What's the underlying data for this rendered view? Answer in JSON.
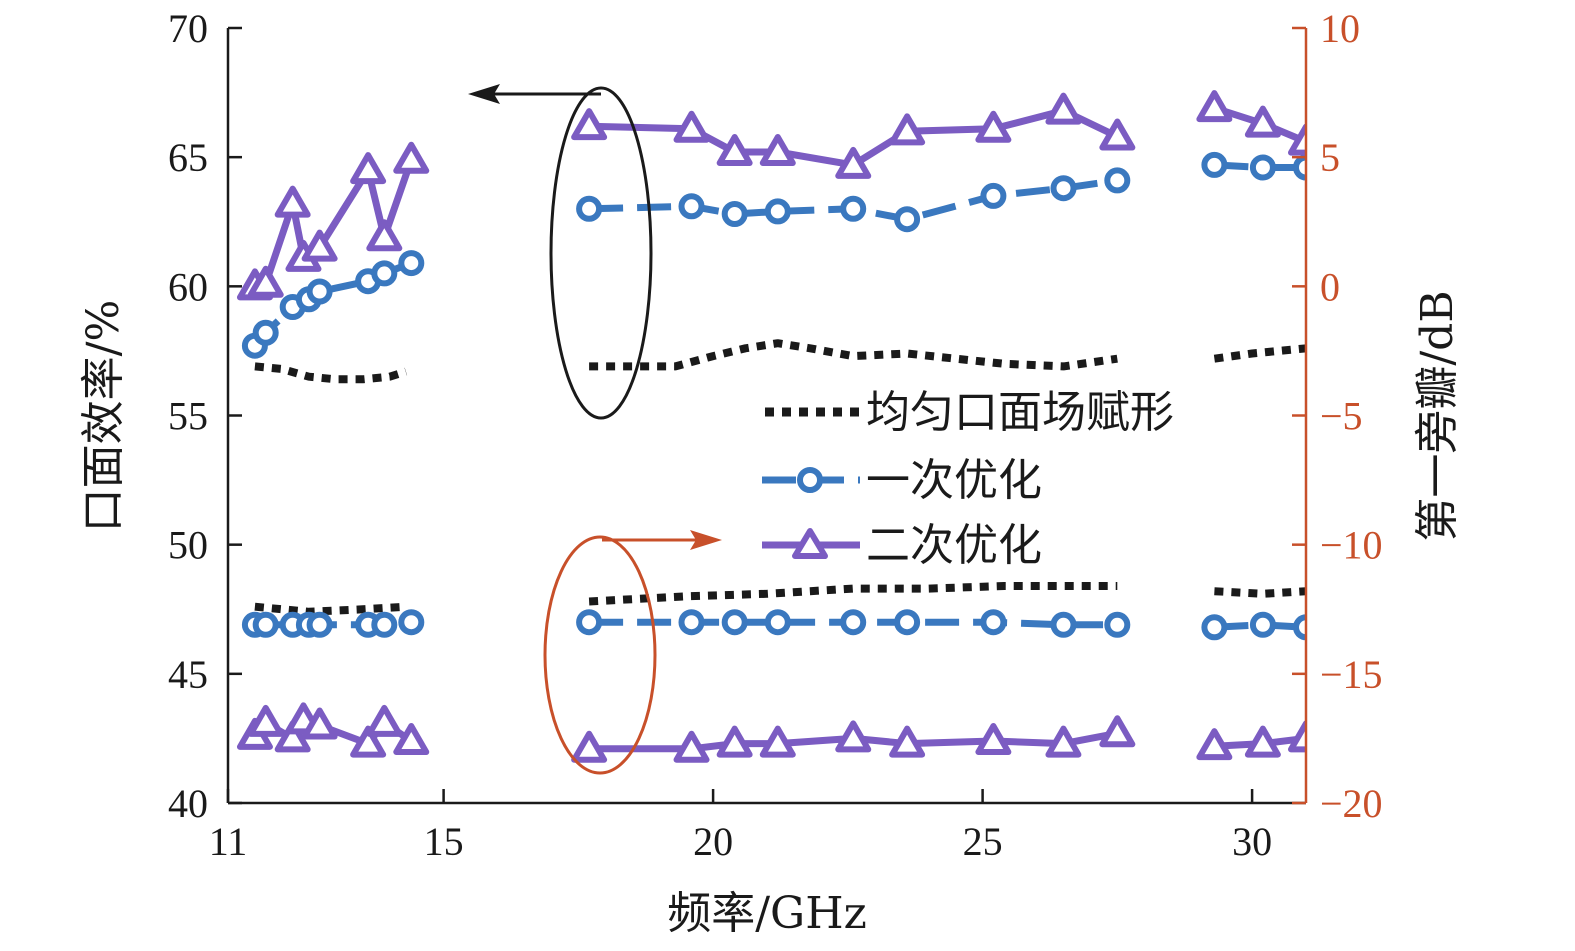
{
  "colors": {
    "axis": "#1a1a1a",
    "right_axis": "#c8502a",
    "uniform": "#1a1a1a",
    "first": "#3a78bf",
    "second": "#7b5cc2",
    "black_ellipse": "#1a1a1a",
    "red_ellipse": "#c8502a"
  },
  "chart_data": {
    "type": "line",
    "xlabel": "频率/GHz",
    "ylabel_left": "口面效率/%",
    "ylabel_right": "第一旁瓣/dB",
    "xlim": [
      11,
      31
    ],
    "ylim_left": [
      40,
      70
    ],
    "ylim_right": [
      -20,
      10
    ],
    "xticks": [
      11,
      15,
      20,
      25,
      30
    ],
    "yticks_left": [
      40,
      45,
      50,
      55,
      60,
      65,
      70
    ],
    "yticks_right": [
      -20,
      -15,
      -10,
      -5,
      0,
      5,
      10
    ],
    "legend": {
      "placement": "center-right",
      "entries": [
        "均匀口面场赋形",
        "一次优化",
        "二次优化"
      ]
    },
    "annotations": {
      "left_arrow": "efficiency curves refer to left axis",
      "right_arrow": "side lobe curves refer to right axis"
    },
    "series": [
      {
        "name": "均匀口面场赋形",
        "axis": "left",
        "style": "dotted",
        "segments": [
          [
            [
              11.5,
              56.9
            ],
            [
              12.0,
              56.8
            ],
            [
              12.5,
              56.5
            ],
            [
              13.0,
              56.4
            ],
            [
              13.5,
              56.4
            ],
            [
              14.0,
              56.5
            ],
            [
              14.3,
              56.7
            ]
          ],
          [
            [
              17.7,
              56.9
            ],
            [
              18.5,
              56.9
            ],
            [
              19.3,
              56.9
            ],
            [
              20.0,
              57.3
            ],
            [
              20.6,
              57.6
            ],
            [
              21.2,
              57.8
            ],
            [
              21.8,
              57.6
            ],
            [
              22.6,
              57.3
            ],
            [
              23.6,
              57.4
            ],
            [
              24.5,
              57.2
            ],
            [
              25.4,
              57.0
            ],
            [
              26.5,
              56.9
            ],
            [
              27.5,
              57.2
            ]
          ],
          [
            [
              29.3,
              57.2
            ],
            [
              30.0,
              57.4
            ],
            [
              31.0,
              57.6
            ]
          ]
        ]
      },
      {
        "name": "一次优化",
        "axis": "left",
        "style": "dashed-circle",
        "segments": [
          [
            [
              11.5,
              57.7
            ],
            [
              11.7,
              58.2
            ],
            [
              12.2,
              59.2
            ],
            [
              12.5,
              59.5
            ],
            [
              12.7,
              59.8
            ],
            [
              13.6,
              60.2
            ],
            [
              13.9,
              60.5
            ],
            [
              14.4,
              60.9
            ]
          ],
          [
            [
              17.7,
              63.0
            ],
            [
              19.6,
              63.1
            ],
            [
              20.4,
              62.8
            ],
            [
              21.2,
              62.9
            ],
            [
              22.6,
              63.0
            ],
            [
              23.6,
              62.6
            ],
            [
              25.2,
              63.5
            ],
            [
              26.5,
              63.8
            ],
            [
              27.5,
              64.1
            ]
          ],
          [
            [
              29.3,
              64.7
            ],
            [
              30.2,
              64.6
            ],
            [
              31.0,
              64.6
            ]
          ]
        ]
      },
      {
        "name": "二次优化",
        "axis": "left",
        "style": "solid-triangle",
        "segments": [
          [
            [
              11.5,
              60.0
            ],
            [
              11.7,
              60.1
            ],
            [
              12.2,
              63.2
            ],
            [
              12.4,
              61.1
            ],
            [
              12.7,
              61.5
            ],
            [
              13.6,
              64.5
            ],
            [
              13.9,
              61.9
            ],
            [
              14.4,
              64.9
            ]
          ],
          [
            [
              17.7,
              66.2
            ],
            [
              19.6,
              66.1
            ],
            [
              20.4,
              65.2
            ],
            [
              21.2,
              65.2
            ],
            [
              22.6,
              64.7
            ],
            [
              23.6,
              66.0
            ],
            [
              25.2,
              66.1
            ],
            [
              26.5,
              66.8
            ],
            [
              27.5,
              65.8
            ]
          ],
          [
            [
              29.3,
              66.9
            ],
            [
              30.2,
              66.3
            ],
            [
              31.0,
              65.6
            ]
          ]
        ]
      },
      {
        "name": "均匀口面场赋形",
        "axis": "right",
        "style": "dotted",
        "segments": [
          [
            [
              11.5,
              -12.4
            ],
            [
              12.5,
              -12.6
            ],
            [
              13.5,
              -12.5
            ],
            [
              14.3,
              -12.4
            ]
          ],
          [
            [
              17.7,
              -12.2
            ],
            [
              19.5,
              -12.0
            ],
            [
              21.0,
              -11.9
            ],
            [
              22.6,
              -11.7
            ],
            [
              24.0,
              -11.7
            ],
            [
              25.4,
              -11.6
            ],
            [
              27.5,
              -11.6
            ]
          ],
          [
            [
              29.3,
              -11.8
            ],
            [
              30.2,
              -11.9
            ],
            [
              31.0,
              -11.8
            ]
          ]
        ]
      },
      {
        "name": "一次优化",
        "axis": "right",
        "style": "dashed-circle",
        "segments": [
          [
            [
              11.5,
              -13.1
            ],
            [
              11.7,
              -13.1
            ],
            [
              12.2,
              -13.1
            ],
            [
              12.5,
              -13.1
            ],
            [
              12.7,
              -13.1
            ],
            [
              13.6,
              -13.1
            ],
            [
              13.9,
              -13.1
            ],
            [
              14.4,
              -13.0
            ]
          ],
          [
            [
              17.7,
              -13.0
            ],
            [
              19.6,
              -13.0
            ],
            [
              20.4,
              -13.0
            ],
            [
              21.2,
              -13.0
            ],
            [
              22.6,
              -13.0
            ],
            [
              23.6,
              -13.0
            ],
            [
              25.2,
              -13.0
            ],
            [
              26.5,
              -13.1
            ],
            [
              27.5,
              -13.1
            ]
          ],
          [
            [
              29.3,
              -13.2
            ],
            [
              30.2,
              -13.1
            ],
            [
              31.0,
              -13.2
            ]
          ]
        ]
      },
      {
        "name": "二次优化",
        "axis": "right",
        "style": "solid-triangle",
        "segments": [
          [
            [
              11.5,
              -17.4
            ],
            [
              11.7,
              -16.9
            ],
            [
              12.2,
              -17.5
            ],
            [
              12.4,
              -16.8
            ],
            [
              12.7,
              -17.0
            ],
            [
              13.6,
              -17.7
            ],
            [
              13.9,
              -16.9
            ],
            [
              14.4,
              -17.6
            ]
          ],
          [
            [
              17.7,
              -17.9
            ],
            [
              19.6,
              -17.9
            ],
            [
              20.4,
              -17.7
            ],
            [
              21.2,
              -17.7
            ],
            [
              22.6,
              -17.5
            ],
            [
              23.6,
              -17.7
            ],
            [
              25.2,
              -17.6
            ],
            [
              26.5,
              -17.7
            ],
            [
              27.5,
              -17.3
            ]
          ],
          [
            [
              29.3,
              -17.8
            ],
            [
              30.2,
              -17.7
            ],
            [
              31.0,
              -17.5
            ]
          ]
        ]
      }
    ]
  }
}
